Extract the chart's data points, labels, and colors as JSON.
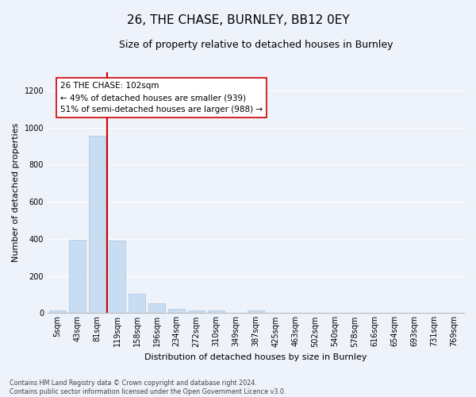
{
  "title": "26, THE CHASE, BURNLEY, BB12 0EY",
  "subtitle": "Size of property relative to detached houses in Burnley",
  "xlabel": "Distribution of detached houses by size in Burnley",
  "ylabel": "Number of detached properties",
  "bar_labels": [
    "5sqm",
    "43sqm",
    "81sqm",
    "119sqm",
    "158sqm",
    "196sqm",
    "234sqm",
    "272sqm",
    "310sqm",
    "349sqm",
    "387sqm",
    "425sqm",
    "463sqm",
    "502sqm",
    "540sqm",
    "578sqm",
    "616sqm",
    "654sqm",
    "693sqm",
    "731sqm",
    "769sqm"
  ],
  "bar_values": [
    15,
    395,
    955,
    390,
    105,
    52,
    25,
    15,
    13,
    0,
    15,
    0,
    0,
    0,
    0,
    0,
    0,
    0,
    0,
    0,
    0
  ],
  "bar_color": "#c9ddf2",
  "bar_edgecolor": "#a8c4e0",
  "vline_x": 2.48,
  "vline_color": "#cc0000",
  "annotation_text": "26 THE CHASE: 102sqm\n← 49% of detached houses are smaller (939)\n51% of semi-detached houses are larger (988) →",
  "annotation_box_color": "#ffffff",
  "annotation_box_edgecolor": "#cc0000",
  "ylim": [
    0,
    1300
  ],
  "yticks": [
    0,
    200,
    400,
    600,
    800,
    1000,
    1200
  ],
  "footnote": "Contains HM Land Registry data © Crown copyright and database right 2024.\nContains public sector information licensed under the Open Government Licence v3.0.",
  "background_color": "#eef2fa",
  "grid_color": "#ffffff",
  "title_fontsize": 11,
  "subtitle_fontsize": 9,
  "ylabel_fontsize": 8,
  "xlabel_fontsize": 8,
  "annotation_fontsize": 7.5,
  "tick_fontsize": 7
}
